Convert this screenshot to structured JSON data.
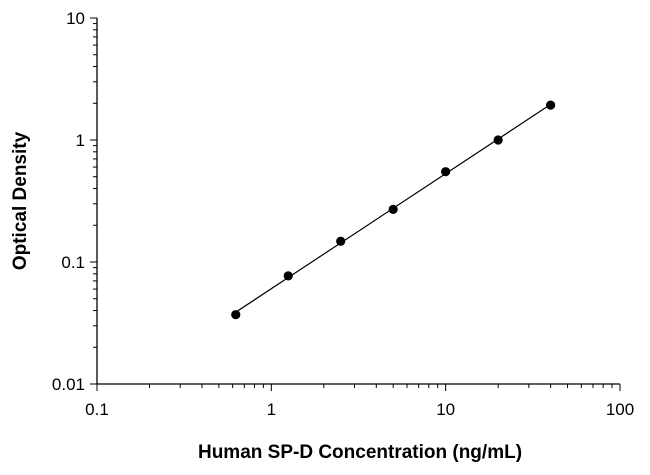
{
  "chart_data": {
    "type": "scatter",
    "title": "",
    "xlabel": "Human SP-D Concentration (ng/mL)",
    "ylabel": "Optical Density",
    "x_scale": "log",
    "y_scale": "log",
    "xlim": [
      0.1,
      100
    ],
    "ylim": [
      0.01,
      10
    ],
    "x_ticks": [
      0.1,
      1,
      10,
      100
    ],
    "y_ticks": [
      0.01,
      0.1,
      1,
      10
    ],
    "x_tick_labels": [
      "0.1",
      "1",
      "10",
      "100"
    ],
    "y_tick_labels": [
      "0.01",
      "0.1",
      "1",
      "10"
    ],
    "grid": false,
    "legend": "none",
    "series": [
      {
        "x": [
          0.625,
          1.25,
          2.5,
          5,
          10,
          20,
          40
        ],
        "y": [
          0.037,
          0.077,
          0.148,
          0.27,
          0.55,
          1.0,
          1.93
        ],
        "marker": "circle",
        "color": "#000000",
        "trendline": "power fit"
      }
    ]
  }
}
